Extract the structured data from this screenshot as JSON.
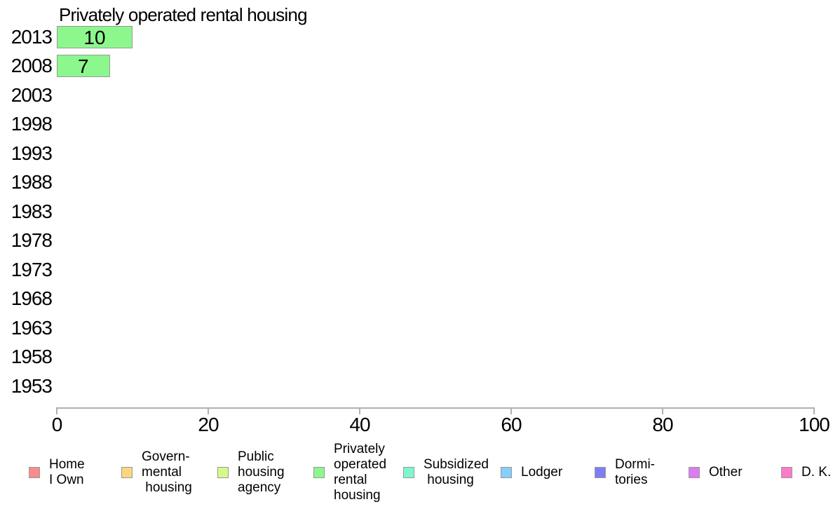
{
  "chart_data": {
    "type": "bar",
    "orientation": "horizontal",
    "title": "Privately operated rental housing",
    "categories": [
      "2013",
      "2008",
      "2003",
      "1998",
      "1993",
      "1988",
      "1983",
      "1978",
      "1973",
      "1968",
      "1963",
      "1958",
      "1953"
    ],
    "values": [
      10,
      7,
      null,
      null,
      null,
      null,
      null,
      null,
      null,
      null,
      null,
      null,
      null
    ],
    "xlabel": "",
    "ylabel": "",
    "xlim": [
      0,
      100
    ],
    "xticks": [
      0,
      20,
      40,
      60,
      80,
      100
    ],
    "grid": false,
    "legend_position": "bottom",
    "bar_color": "#8CF78C",
    "bar_border_color": "#999999",
    "legend": [
      {
        "label": "Home\nI Own",
        "color": "#F98D8D"
      },
      {
        "label": "Govern-\nmental\n housing",
        "color": "#FAD77E"
      },
      {
        "label": "Public\nhousing\nagency",
        "color": "#D7F98A"
      },
      {
        "label": "Privately\noperated\nrental\nhousing",
        "color": "#8CF78C"
      },
      {
        "label": "Subsidized\n housing",
        "color": "#7FF6CC"
      },
      {
        "label": "Lodger",
        "color": "#87CEFA"
      },
      {
        "label": "Dormi-\ntories",
        "color": "#7E7EF2"
      },
      {
        "label": "Other",
        "color": "#DC7BF2"
      },
      {
        "label": "D. K.",
        "color": "#FA7BC8"
      }
    ]
  }
}
